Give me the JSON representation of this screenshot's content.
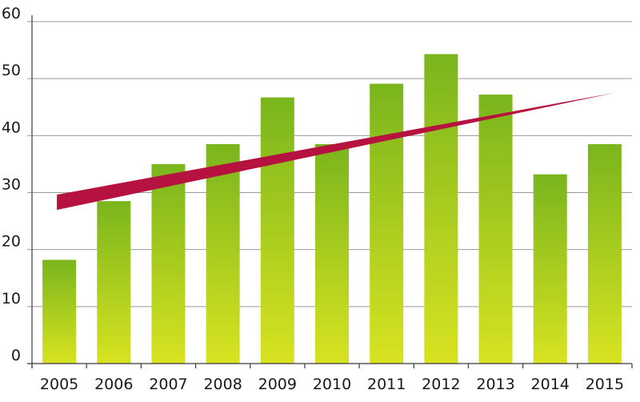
{
  "chart_data": {
    "type": "bar",
    "title": "",
    "xlabel": "",
    "ylabel": "",
    "categories": [
      "2005",
      "2006",
      "2007",
      "2008",
      "2009",
      "2010",
      "2011",
      "2012",
      "2013",
      "2014",
      "2015"
    ],
    "values": [
      18.2,
      28.5,
      35.0,
      38.5,
      46.7,
      38.5,
      49.1,
      54.3,
      47.2,
      33.2,
      38.5
    ],
    "ylim": [
      0,
      60
    ],
    "yticks": [
      "0",
      "10",
      "20",
      "30",
      "40",
      "50",
      "60"
    ],
    "grid": true,
    "legend": "none",
    "trend": {
      "type": "linear",
      "from": {
        "x": "2005",
        "y": 28.3
      },
      "to": {
        "x": "2015",
        "y": 47.5
      }
    },
    "colors": {
      "bar_top": "#7ab51d",
      "bar_bottom": "#d8e321",
      "trend": "#b5123f",
      "grid": "#9a9a9a"
    }
  }
}
